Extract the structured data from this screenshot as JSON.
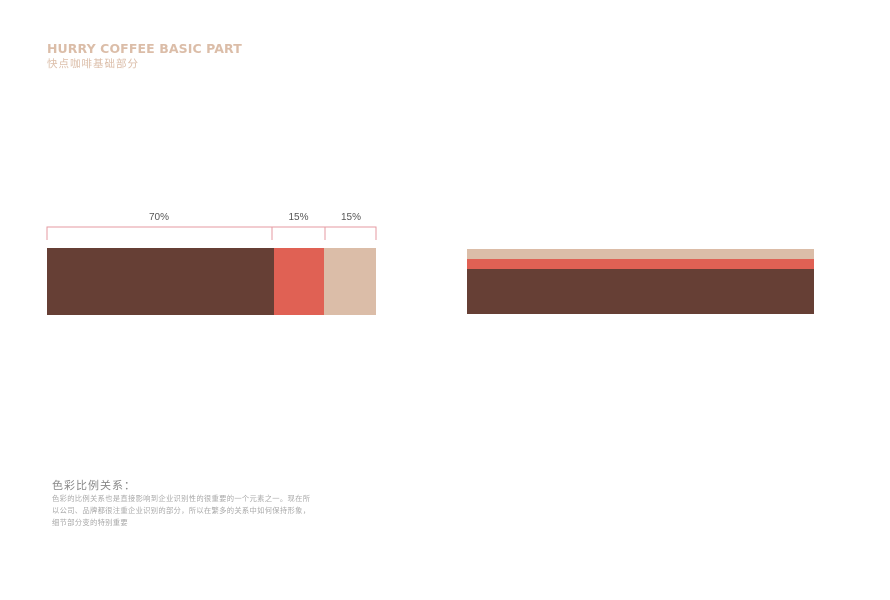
{
  "header": {
    "title": "HURRY COFFEE BASIC PART",
    "subtitle": "快点咖啡基础部分"
  },
  "colors": {
    "accent_text": "#dbbda8",
    "bracket": "#e69aa0",
    "brown": "#663f35",
    "red": "#e06154",
    "beige": "#dbbda8"
  },
  "proportion_bar": {
    "segments": [
      {
        "label": "70%",
        "percent": 70,
        "color": "#663f35"
      },
      {
        "label": "15%",
        "percent": 15,
        "color": "#e06154"
      },
      {
        "label": "15%",
        "percent": 15,
        "color": "#dbbda8"
      }
    ]
  },
  "stacked_bar": {
    "layers": [
      {
        "name": "beige",
        "color": "#dbbda8"
      },
      {
        "name": "red",
        "color": "#e06154"
      },
      {
        "name": "brown",
        "color": "#663f35"
      }
    ]
  },
  "note": {
    "title": "色彩比例关系：",
    "lines": [
      "色彩的比例关系也是直接影响到企业识别性的很重要的一个元素之一。现在所",
      "以公司、品牌都很注重企业识别的部分，所以在繁多的关系中如何保持形象，",
      "细节部分变的特别重要"
    ]
  }
}
